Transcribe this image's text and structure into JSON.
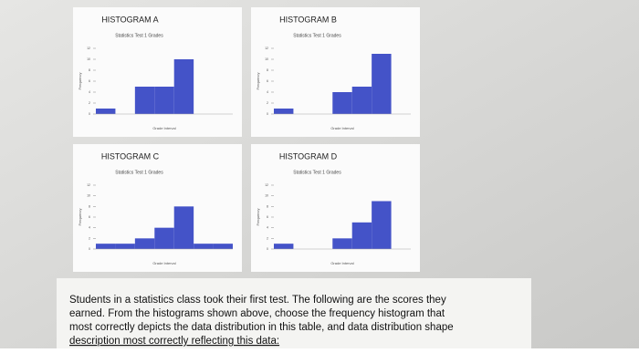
{
  "chart_data": [
    {
      "type": "histogram",
      "title": "HISTOGRAM A",
      "subtitle": "Statistics Test 1 Grades",
      "x_label": "Grade Interval",
      "y_label": "Frequency",
      "categories": [
        null,
        null,
        null,
        null,
        null,
        null,
        null
      ],
      "values": [
        1,
        0,
        5,
        5,
        10,
        0,
        0
      ],
      "color": "#4453c8",
      "ylim": [
        0,
        12
      ],
      "yticks": [
        0,
        2,
        4,
        6,
        8,
        10,
        12
      ]
    },
    {
      "type": "histogram",
      "title": "HISTOGRAM B",
      "subtitle": "Statistics Test 1 Grades",
      "x_label": "Grade Interval",
      "y_label": "Frequency",
      "categories": [
        null,
        null,
        null,
        null,
        null,
        null,
        null
      ],
      "values": [
        1,
        0,
        0,
        4,
        5,
        11,
        0
      ],
      "color": "#4453c8",
      "ylim": [
        0,
        12
      ],
      "yticks": [
        0,
        2,
        4,
        6,
        8,
        10,
        12
      ]
    },
    {
      "type": "histogram",
      "title": "HISTOGRAM C",
      "subtitle": "Statistics Test 1 Grades",
      "x_label": "Grade Interval",
      "y_label": "Frequency",
      "categories": [
        null,
        null,
        null,
        null,
        null,
        null,
        null
      ],
      "values": [
        1,
        1,
        2,
        4,
        8,
        1,
        1
      ],
      "color": "#4453c8",
      "ylim": [
        0,
        12
      ],
      "yticks": [
        0,
        2,
        4,
        6,
        8,
        10,
        12
      ]
    },
    {
      "type": "histogram",
      "title": "HISTOGRAM D",
      "subtitle": "Statistics Test 1 Grades",
      "x_label": "Grade Interval",
      "y_label": "Frequency",
      "categories": [
        null,
        null,
        null,
        null,
        null,
        null,
        null
      ],
      "values": [
        1,
        0,
        0,
        2,
        5,
        9,
        0
      ],
      "color": "#4453c8",
      "ylim": [
        0,
        12
      ],
      "yticks": [
        0,
        2,
        4,
        6,
        8,
        10,
        12
      ]
    }
  ],
  "question": {
    "lines": [
      "Students in a statistics class took their first test.  The following are the scores they",
      "earned.  From the histograms shown above, choose the frequency histogram that",
      "most correctly depicts the data distribution in this table, and data distribution shape",
      "description most correctly reflecting this data:"
    ]
  }
}
